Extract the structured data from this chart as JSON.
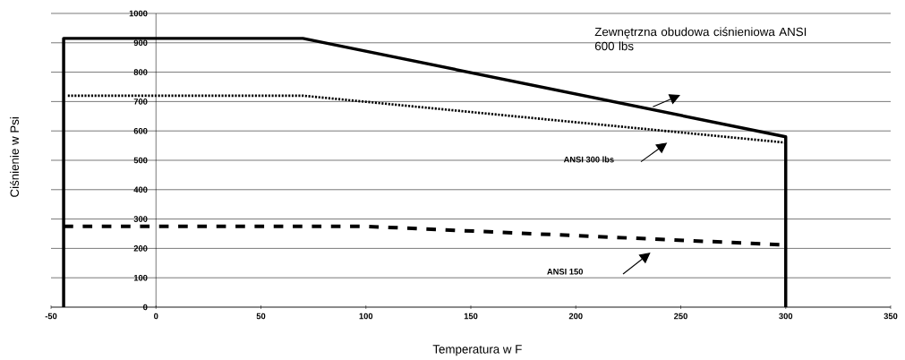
{
  "chart_data": {
    "type": "line",
    "xlabel": "Temperatura w F",
    "ylabel": "Ciśnienie w Psi",
    "xlim": [
      -50,
      350
    ],
    "ylim": [
      0,
      1000
    ],
    "xticks": [
      -50,
      0,
      50,
      100,
      150,
      200,
      250,
      300,
      350
    ],
    "yticks": [
      0,
      100,
      200,
      300,
      400,
      500,
      600,
      700,
      800,
      900,
      1000
    ],
    "grid": "y",
    "series": [
      {
        "color": "#000000",
        "line_style": "solid",
        "x": [
          -44,
          -44,
          70,
          300,
          300
        ],
        "values": [
          0,
          915,
          915,
          580,
          0
        ]
      },
      {
        "color": "#000000",
        "line_style": "dotted",
        "x": [
          -42,
          70,
          300
        ],
        "values": [
          720,
          720,
          560
        ]
      },
      {
        "color": "#000000",
        "line_style": "dashed",
        "x": [
          -44,
          100,
          300
        ],
        "values": [
          275,
          275,
          212
        ]
      }
    ],
    "annotations": [
      "Zewnętrzna obudowa ciśnieniowa ANSI 600 lbs",
      "ANSI 300 lbs",
      "ANSI 150"
    ]
  }
}
